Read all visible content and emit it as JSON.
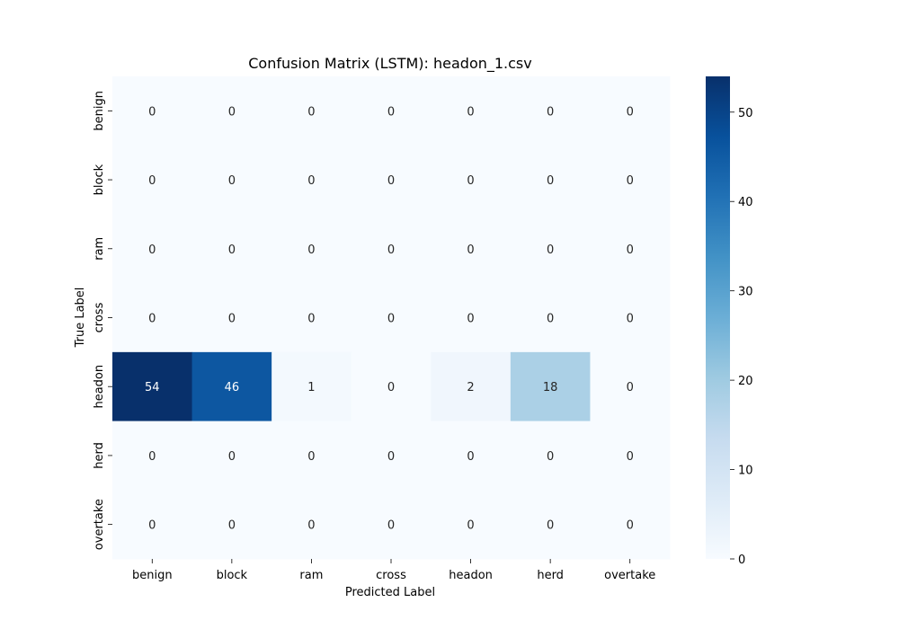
{
  "chart_data": {
    "type": "heatmap",
    "title": "Confusion Matrix (LSTM): headon_1.csv",
    "xlabel": "Predicted Label",
    "ylabel": "True Label",
    "x_categories": [
      "benign",
      "block",
      "ram",
      "cross",
      "headon",
      "herd",
      "overtake"
    ],
    "y_categories": [
      "benign",
      "block",
      "ram",
      "cross",
      "headon",
      "herd",
      "overtake"
    ],
    "values": [
      [
        0,
        0,
        0,
        0,
        0,
        0,
        0
      ],
      [
        0,
        0,
        0,
        0,
        0,
        0,
        0
      ],
      [
        0,
        0,
        0,
        0,
        0,
        0,
        0
      ],
      [
        0,
        0,
        0,
        0,
        0,
        0,
        0
      ],
      [
        54,
        46,
        1,
        0,
        2,
        18,
        0
      ],
      [
        0,
        0,
        0,
        0,
        0,
        0,
        0
      ],
      [
        0,
        0,
        0,
        0,
        0,
        0,
        0
      ]
    ],
    "colorbar": {
      "min": 0,
      "max": 54,
      "ticks": [
        0,
        10,
        20,
        30,
        40,
        50
      ],
      "colormap": "Blues",
      "colors": [
        "#f7fbff",
        "#deebf7",
        "#c6dbef",
        "#9ecae1",
        "#6baed6",
        "#4292c6",
        "#2171b5",
        "#08519c",
        "#08306b"
      ]
    }
  }
}
